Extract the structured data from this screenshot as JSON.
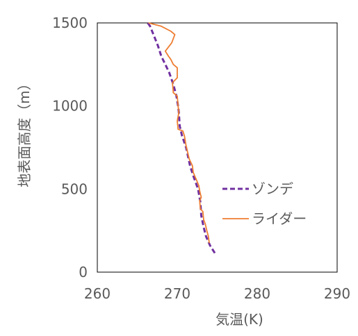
{
  "chart_data": {
    "type": "line",
    "title": "",
    "xlabel": "気温(K)",
    "ylabel": "地表面高度（m）",
    "xlim": [
      260,
      290
    ],
    "ylim": [
      0,
      1500
    ],
    "xticks": [
      260,
      270,
      280,
      290
    ],
    "yticks": [
      0,
      500,
      1000,
      1500
    ],
    "grid": false,
    "legend": "right",
    "series": [
      {
        "name": "ゾンデ",
        "color": "#7030A0",
        "style": "dashed",
        "points": [
          [
            274.7,
            115
          ],
          [
            274.1,
            160
          ],
          [
            273.6,
            215
          ],
          [
            273.3,
            270
          ],
          [
            273.0,
            340
          ],
          [
            272.9,
            420
          ],
          [
            272.6,
            500
          ],
          [
            272.3,
            540
          ],
          [
            272.0,
            580
          ],
          [
            271.6,
            640
          ],
          [
            271.1,
            750
          ],
          [
            270.6,
            820
          ],
          [
            270.3,
            880
          ],
          [
            270.2,
            960
          ],
          [
            270.1,
            1000
          ],
          [
            269.9,
            1060
          ],
          [
            269.5,
            1130
          ],
          [
            269.0,
            1200
          ],
          [
            268.5,
            1250
          ],
          [
            268.0,
            1300
          ],
          [
            267.6,
            1360
          ],
          [
            267.1,
            1420
          ],
          [
            266.6,
            1480
          ],
          [
            266.3,
            1500
          ]
        ]
      },
      {
        "name": "ライダー",
        "color": "#ED7D31",
        "style": "solid",
        "points": [
          [
            274.0,
            175
          ],
          [
            273.9,
            215
          ],
          [
            273.7,
            250
          ],
          [
            273.5,
            290
          ],
          [
            273.3,
            315
          ],
          [
            273.2,
            365
          ],
          [
            272.9,
            380
          ],
          [
            272.8,
            430
          ],
          [
            273.0,
            450
          ],
          [
            272.8,
            490
          ],
          [
            272.7,
            520
          ],
          [
            272.4,
            555
          ],
          [
            272.0,
            600
          ],
          [
            271.9,
            640
          ],
          [
            271.5,
            680
          ],
          [
            271.1,
            760
          ],
          [
            270.9,
            820
          ],
          [
            270.7,
            850
          ],
          [
            270.1,
            860
          ],
          [
            270.0,
            910
          ],
          [
            270.2,
            960
          ],
          [
            270.1,
            1000
          ],
          [
            270.0,
            1060
          ],
          [
            269.5,
            1080
          ],
          [
            269.4,
            1140
          ],
          [
            269.8,
            1160
          ],
          [
            270.0,
            1170
          ],
          [
            270.0,
            1230
          ],
          [
            269.5,
            1250
          ],
          [
            269.2,
            1280
          ],
          [
            268.9,
            1300
          ],
          [
            268.5,
            1330
          ],
          [
            269.3,
            1380
          ],
          [
            269.7,
            1430
          ],
          [
            269.2,
            1450
          ],
          [
            268.0,
            1480
          ],
          [
            266.4,
            1500
          ]
        ]
      }
    ]
  }
}
